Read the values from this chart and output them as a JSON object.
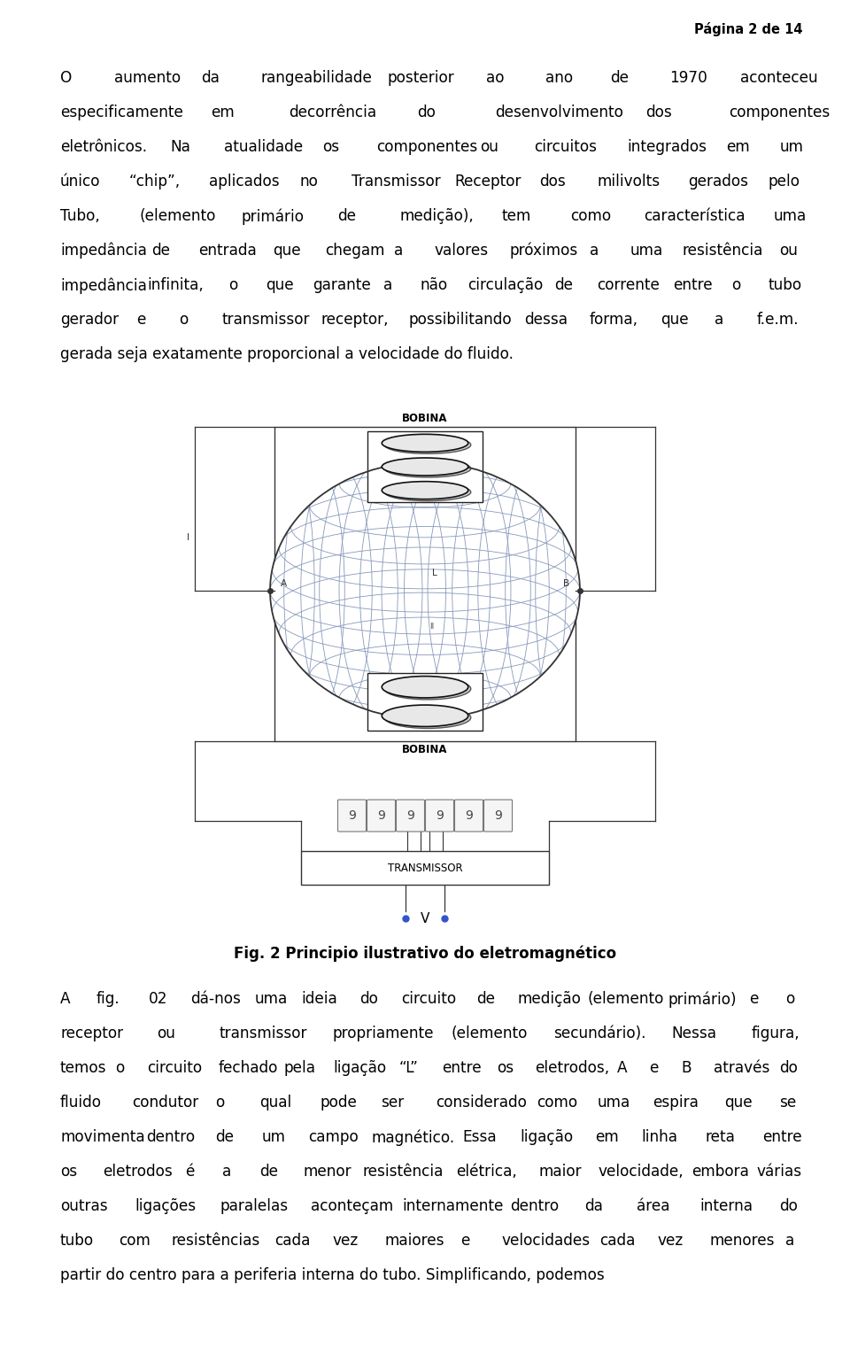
{
  "page_header": "Página 2 de 14",
  "lines_p1": [
    [
      "O",
      "aumento",
      "da",
      "rangeabilidade",
      "posterior",
      "ao",
      "ano",
      "de",
      "1970",
      "aconteceu"
    ],
    [
      "especificamente",
      "em",
      "decorrência",
      "do",
      "desenvolvimento",
      "dos",
      "componentes"
    ],
    [
      "eletrônicos.",
      "Na",
      "atualidade",
      "os",
      "componentes",
      "ou",
      "circuitos",
      "integrados",
      "em",
      "um"
    ],
    [
      "único",
      "“chip”,",
      "aplicados",
      "no",
      "Transmissor",
      "Receptor",
      "dos",
      "milivolts",
      "gerados",
      "pelo"
    ],
    [
      "Tubo,",
      "(elemento",
      "primário",
      "de",
      "medição),",
      "tem",
      "como",
      "característica",
      "uma"
    ],
    [
      "impedância",
      "de",
      "entrada",
      "que",
      "chegam",
      "a",
      "valores",
      "próximos",
      "a",
      "uma",
      "resistência",
      "ou"
    ],
    [
      "impedância",
      "infinita,",
      "o",
      "que",
      "garante",
      "a",
      "não",
      "circulação",
      "de",
      "corrente",
      "entre",
      "o",
      "tubo"
    ],
    [
      "gerador",
      "e",
      "o",
      "transmissor",
      "receptor,",
      "possibilitando",
      "dessa",
      "forma,",
      "que",
      "a",
      "f.e.m."
    ],
    [
      "gerada",
      "seja",
      "exatamente",
      "proporcional",
      "a",
      "velocidade",
      "do",
      "fluido."
    ]
  ],
  "lines_p2": [
    [
      "A",
      "fig.",
      "02",
      "dá-nos",
      "uma",
      "ideia",
      "do",
      "circuito",
      "de",
      "medição",
      "(elemento",
      "primário)",
      "e",
      "o"
    ],
    [
      "receptor",
      "ou",
      "transmissor",
      "propriamente",
      "(elemento",
      "secundário).",
      "Nessa",
      "figura,"
    ],
    [
      "temos",
      "o",
      "circuito",
      "fechado",
      "pela",
      "ligação",
      "“L”",
      "entre",
      "os",
      "eletrodos,",
      "A",
      "e",
      "B",
      "através",
      "do"
    ],
    [
      "fluido",
      "condutor",
      "o",
      "qual",
      "pode",
      "ser",
      "considerado",
      "como",
      "uma",
      "espira",
      "que",
      "se"
    ],
    [
      "movimenta",
      "dentro",
      "de",
      "um",
      "campo",
      "magnético.",
      "Essa",
      "ligação",
      "em",
      "linha",
      "reta",
      "entre"
    ],
    [
      "os",
      "eletrodos",
      "é",
      "a",
      "de",
      "menor",
      "resistência",
      "elétrica,",
      "maior",
      "velocidade,",
      "embora",
      "várias"
    ],
    [
      "outras",
      "ligações",
      "paralelas",
      "aconteçam",
      "internamente",
      "dentro",
      "da",
      "área",
      "interna",
      "do"
    ],
    [
      "tubo",
      "com",
      "resistências",
      "cada",
      "vez",
      "maiores",
      "e",
      "velocidades",
      "cada",
      "vez",
      "menores",
      "a"
    ],
    [
      "partir",
      "do",
      "centro",
      "para",
      "a",
      "periferia",
      "interna",
      "do",
      "tubo.",
      "Simplificando,",
      "podemos"
    ]
  ],
  "fig_caption": "Fig. 2 Principio ilustrativo do eletromagnético",
  "bg_color": "#ffffff",
  "text_color": "#000000"
}
